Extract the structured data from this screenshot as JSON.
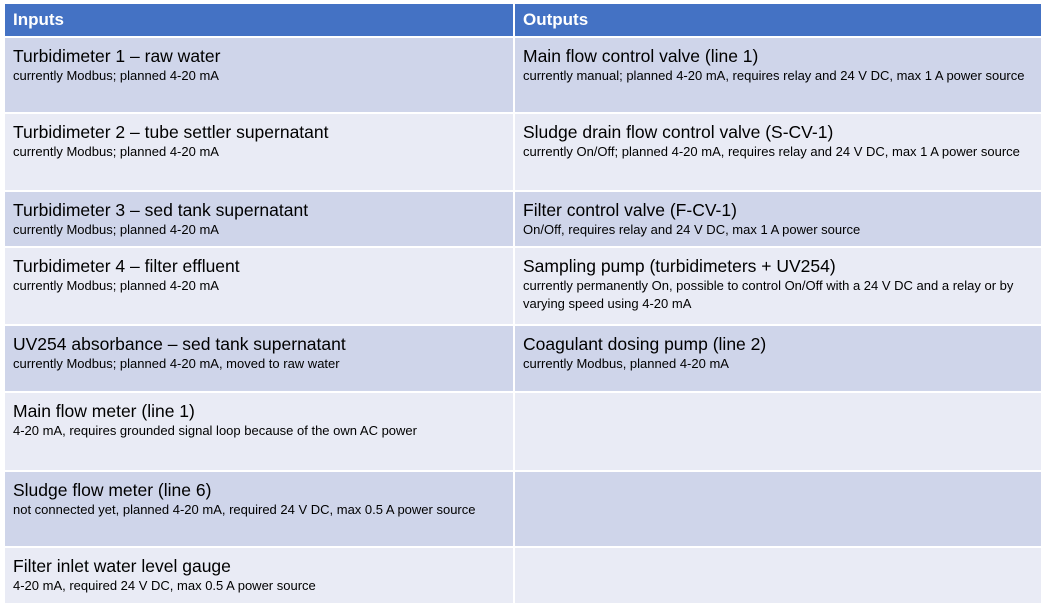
{
  "header": {
    "inputs": "Inputs",
    "outputs": "Outputs"
  },
  "rows": [
    {
      "input_title": "Turbidimeter 1 – raw water",
      "input_detail": "currently Modbus; planned 4-20 mA",
      "output_title": "Main flow control valve (line 1)",
      "output_detail": "currently manual; planned 4-20 mA, requires relay and 24 V DC, max 1 A power source"
    },
    {
      "input_title": "Turbidimeter 2 – tube settler supernatant",
      "input_detail": "currently Modbus; planned 4-20 mA",
      "output_title": "Sludge drain flow control valve (S-CV-1)",
      "output_detail": "currently On/Off; planned 4-20 mA, requires relay and 24 V DC, max 1 A power source"
    },
    {
      "input_title": "Turbidimeter 3 – sed tank supernatant",
      "input_detail": "currently Modbus; planned 4-20 mA",
      "output_title": "Filter control valve (F-CV-1)",
      "output_detail": "On/Off, requires relay and 24 V DC, max 1 A power source"
    },
    {
      "input_title": "Turbidimeter 4 – filter effluent",
      "input_detail": "currently Modbus; planned 4-20 mA",
      "output_title": "Sampling pump (turbidimeters + UV254)",
      "output_detail": "currently permanently On, possible to control On/Off with a 24 V DC and a relay or by varying speed using 4-20 mA"
    },
    {
      "input_title": "UV254 absorbance – sed tank supernatant",
      "input_detail": "currently Modbus; planned 4-20 mA, moved to raw water",
      "output_title": "Coagulant dosing pump (line 2)",
      "output_detail": "currently Modbus, planned 4-20 mA"
    },
    {
      "input_title": "Main flow meter (line 1)",
      "input_detail": "4-20 mA, requires grounded signal loop because of the own AC power",
      "output_title": "",
      "output_detail": ""
    },
    {
      "input_title": "Sludge flow meter (line 6)",
      "input_detail": "not connected yet, planned 4-20 mA, required 24 V DC, max 0.5 A power source",
      "output_title": "",
      "output_detail": ""
    },
    {
      "input_title": "Filter inlet water level gauge",
      "input_detail": "4-20 mA, required 24 V DC, max 0.5 A power source",
      "output_title": "",
      "output_detail": ""
    }
  ]
}
